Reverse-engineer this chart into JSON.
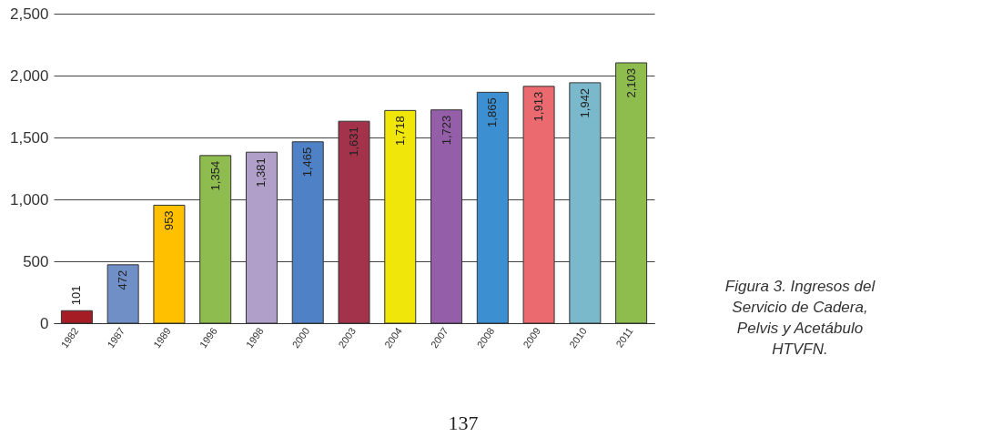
{
  "chart_data": {
    "type": "bar",
    "categories": [
      "1982",
      "1987",
      "1989",
      "1996",
      "1998",
      "2000",
      "2003",
      "2004",
      "2007",
      "2008",
      "2009",
      "2010",
      "2011"
    ],
    "values": [
      101,
      472,
      953,
      1354,
      1381,
      1465,
      1631,
      1718,
      1723,
      1865,
      1913,
      1942,
      2103
    ],
    "colors": [
      "#a51c24",
      "#6f8fc6",
      "#ffc000",
      "#8fbc4f",
      "#b09fc8",
      "#4f81c6",
      "#a2334a",
      "#f0e60a",
      "#955ea8",
      "#3c8fd0",
      "#ea6a70",
      "#7ab8cc",
      "#8ebd4e"
    ],
    "value_labels": [
      "101",
      "472",
      "953",
      "1,354",
      "1,381",
      "1,465",
      "1,631",
      "1,718",
      "1,723",
      "1,865",
      "1,913",
      "1,942",
      "2,103"
    ],
    "ylim": [
      0,
      2500
    ],
    "yticks": [
      {
        "value": 0,
        "label": "0"
      },
      {
        "value": 500,
        "label": "500"
      },
      {
        "value": 1000,
        "label": "1,000"
      },
      {
        "value": 1500,
        "label": "1,500"
      },
      {
        "value": 2000,
        "label": "2,000"
      },
      {
        "value": 2500,
        "label": "2,500"
      }
    ],
    "grid": "y",
    "annotations": [
      "Figura 3. Ingresos del Servicio de Cadera, Pelvis y Acetábulo HTVFN.",
      "137"
    ]
  }
}
